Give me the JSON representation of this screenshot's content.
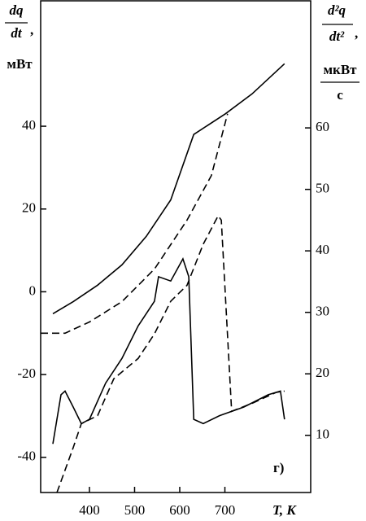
{
  "chart_data": {
    "type": "line",
    "y_label": {
      "numerator": "dq",
      "denominator": "dt",
      "separator": ",",
      "unit": "мВт"
    },
    "y2_label": {
      "numerator": "d²q",
      "denominator": "dt²",
      "separator": ",",
      "unit_numerator": "мкВт",
      "unit_denominator": "с"
    },
    "x_label": "T, K",
    "annotation": "г)",
    "xlim": [
      292,
      890
    ],
    "xticks": [
      400,
      500,
      600,
      700
    ],
    "ylim": [
      -48.5,
      70.5
    ],
    "yticks": [
      -40,
      -20,
      0,
      20,
      40
    ],
    "y2lim": [
      0.7,
      80.8
    ],
    "y2ticks": [
      10,
      20,
      30,
      40,
      50,
      60
    ],
    "series": [
      {
        "color": "#000000",
        "dashed": false,
        "axis": "y",
        "x": [
          319,
          364,
          418,
          472,
          526,
          580,
          631,
          701,
          760,
          832
        ],
        "values": [
          -5.3,
          -2.4,
          1.6,
          6.5,
          13.4,
          22.2,
          38,
          43,
          47.8,
          55.1
        ]
      },
      {
        "color": "#000000",
        "dashed": true,
        "axis": "y",
        "x": [
          292,
          346,
          400,
          472,
          544,
          616,
          670,
          706
        ],
        "values": [
          -10,
          -10,
          -7.3,
          -2.4,
          5.5,
          17.3,
          28.1,
          43
        ]
      },
      {
        "color": "#000000",
        "dashed": false,
        "axis": "y2",
        "x": [
          319,
          337,
          346,
          364,
          382,
          400,
          436,
          472,
          508,
          544,
          553,
          580,
          607,
          620,
          631,
          652,
          688,
          742,
          796,
          823,
          832
        ],
        "values": [
          8.6,
          16.6,
          17.2,
          14.6,
          11.9,
          12.6,
          18.5,
          22.5,
          27.8,
          31.8,
          35.8,
          35.1,
          38.7,
          35.8,
          12.6,
          11.9,
          13.2,
          14.6,
          16.6,
          17.2,
          12.6
        ]
      },
      {
        "color": "#000000",
        "dashed": true,
        "axis": "y2",
        "x": [
          328,
          364,
          382,
          418,
          454,
          508,
          544,
          580,
          616,
          652,
          685,
          692,
          715,
          760,
          814,
          832
        ],
        "values": [
          0.7,
          8.0,
          11.9,
          13.2,
          19.2,
          22.5,
          26.5,
          31.8,
          34.4,
          41.1,
          45.7,
          45.0,
          13.9,
          15.2,
          17.0,
          17.2
        ]
      }
    ]
  }
}
